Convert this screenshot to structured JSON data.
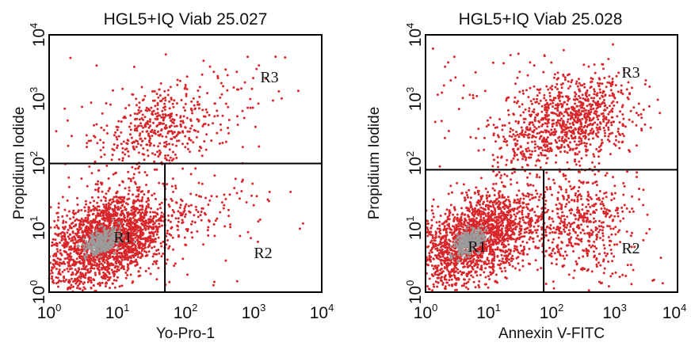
{
  "chart_data": [
    {
      "type": "scatter",
      "title": "HGL5+IQ Viab 25.027",
      "xlabel": "Yo-Pro-1",
      "ylabel": "Propidium Iodide",
      "xscale": "log",
      "yscale": "log",
      "xlim": [
        1,
        10000
      ],
      "ylim": [
        1,
        10000
      ],
      "x_ticks": [
        {
          "base": "10",
          "exp": "0"
        },
        {
          "base": "10",
          "exp": "1"
        },
        {
          "base": "10",
          "exp": "2"
        },
        {
          "base": "10",
          "exp": "3"
        },
        {
          "base": "10",
          "exp": "4"
        }
      ],
      "y_ticks": [
        {
          "base": "10",
          "exp": "0"
        },
        {
          "base": "10",
          "exp": "1"
        },
        {
          "base": "10",
          "exp": "2"
        },
        {
          "base": "10",
          "exp": "3"
        },
        {
          "base": "10",
          "exp": "4"
        }
      ],
      "gates": {
        "x": 50,
        "y": 100
      },
      "regions": [
        "R1",
        "R2",
        "R3"
      ],
      "point_color": "#d9262b",
      "core_color": "#9b9b9b",
      "clusters": [
        {
          "region": "R1",
          "cx": 6,
          "cy": 6,
          "sx": 0.45,
          "sy": 0.38,
          "rho": 0.35,
          "n": 1700
        },
        {
          "region": "R1",
          "cx": 12,
          "cy": 8,
          "sx": 0.35,
          "sy": 0.28,
          "rho": 0.2,
          "n": 500
        },
        {
          "region": "R3",
          "cx": 40,
          "cy": 350,
          "sx": 0.4,
          "sy": 0.3,
          "rho": 0.3,
          "n": 400
        },
        {
          "region": "R2",
          "cx": 120,
          "cy": 20,
          "sx": 0.4,
          "sy": 0.25,
          "rho": 0.0,
          "n": 90
        },
        {
          "region": "R3",
          "cx": 300,
          "cy": 1000,
          "sx": 0.45,
          "sy": 0.4,
          "rho": 0.3,
          "n": 70
        }
      ],
      "scatter_n": 120
    },
    {
      "type": "scatter",
      "title": "HGL5+IQ Viab 25.028",
      "xlabel": "Annexin V-FITC",
      "ylabel": "Propidium Iodide",
      "xscale": "log",
      "yscale": "log",
      "xlim": [
        1,
        10000
      ],
      "ylim": [
        1,
        10000
      ],
      "x_ticks": [
        {
          "base": "10",
          "exp": "0"
        },
        {
          "base": "10",
          "exp": "1"
        },
        {
          "base": "10",
          "exp": "2"
        },
        {
          "base": "10",
          "exp": "3"
        },
        {
          "base": "10",
          "exp": "4"
        }
      ],
      "y_ticks": [
        {
          "base": "10",
          "exp": "0"
        },
        {
          "base": "10",
          "exp": "1"
        },
        {
          "base": "10",
          "exp": "2"
        },
        {
          "base": "10",
          "exp": "3"
        },
        {
          "base": "10",
          "exp": "4"
        }
      ],
      "gates": {
        "x": 75,
        "y": 80
      },
      "regions": [
        "R1",
        "R2",
        "R3"
      ],
      "point_color": "#d9262b",
      "core_color": "#9b9b9b",
      "clusters": [
        {
          "region": "R1",
          "cx": 5,
          "cy": 6,
          "sx": 0.45,
          "sy": 0.35,
          "rho": 0.45,
          "n": 1300
        },
        {
          "region": "R1",
          "cx": 15,
          "cy": 10,
          "sx": 0.4,
          "sy": 0.3,
          "rho": 0.3,
          "n": 500
        },
        {
          "region": "R2",
          "cx": 300,
          "cy": 12,
          "sx": 0.35,
          "sy": 0.4,
          "rho": 0.0,
          "n": 450
        },
        {
          "region": "R3",
          "cx": 250,
          "cy": 500,
          "sx": 0.45,
          "sy": 0.35,
          "rho": 0.2,
          "n": 750
        },
        {
          "region": "R3",
          "cx": 40,
          "cy": 250,
          "sx": 0.3,
          "sy": 0.3,
          "rho": 0.2,
          "n": 200
        }
      ],
      "scatter_n": 200
    }
  ]
}
